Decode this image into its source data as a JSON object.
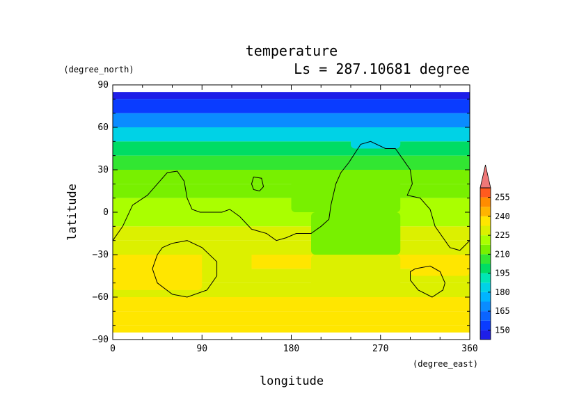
{
  "chart_data": {
    "type": "heatmap",
    "title": "temperature",
    "subtitle": "Ls = 287.10681 degree",
    "xlabel": "longitude",
    "ylabel": "latitude",
    "xunit": "(degree_east)",
    "yunit": "(degree_north)",
    "xlim": [
      0,
      360
    ],
    "ylim": [
      -90,
      90
    ],
    "xticks": [
      "0",
      "90",
      "180",
      "270",
      "360"
    ],
    "yticks": [
      "90",
      "60",
      "30",
      "0",
      "−30",
      "−60",
      "−90"
    ],
    "data_lat_range": [
      -85,
      85
    ],
    "colorbar": {
      "levels": [
        150,
        165,
        180,
        195,
        210,
        225,
        240,
        255
      ],
      "labels": [
        "150",
        "165",
        "180",
        "195",
        "210",
        "225",
        "240",
        "255"
      ],
      "bin_edges": [
        142.5,
        150,
        157.5,
        165,
        172.5,
        180,
        187.5,
        195,
        202.5,
        210,
        217.5,
        225,
        232.5,
        240,
        247.5,
        255,
        262.5
      ],
      "colors": [
        "#1e1ee8",
        "#0a3cff",
        "#0a64ff",
        "#0a8cff",
        "#00b4ff",
        "#00d2e6",
        "#00e6b4",
        "#00dc64",
        "#32e632",
        "#78f000",
        "#aaff00",
        "#dcf000",
        "#ffe600",
        "#ffb400",
        "#ff8c00",
        "#ff5a1e",
        "#ff3c3c"
      ],
      "underflow_color": "#0a0a96",
      "overflow_color": "#f07878"
    },
    "zonal_profile_note": "approximate mean temperature (K) by latitude band",
    "profile_lat": [
      85,
      75,
      65,
      55,
      45,
      35,
      25,
      15,
      5,
      -5,
      -15,
      -25,
      -35,
      -45,
      -55,
      -65,
      -75,
      -85
    ],
    "profile_temp": [
      148,
      155,
      170,
      185,
      197,
      208,
      214,
      217,
      219,
      222,
      226,
      230,
      233,
      232,
      232,
      233,
      233,
      233
    ],
    "cells": [
      {
        "lon": [
          0,
          90
        ],
        "lat": [
          -55,
          -30
        ],
        "temp": 238
      },
      {
        "lon": [
          90,
          140
        ],
        "lat": [
          -45,
          -25
        ],
        "temp": 232
      },
      {
        "lon": [
          200,
          290
        ],
        "lat": [
          -55,
          -30
        ],
        "temp": 227
      },
      {
        "lon": [
          200,
          290
        ],
        "lat": [
          -30,
          0
        ],
        "temp": 217
      },
      {
        "lon": [
          300,
          360
        ],
        "lat": [
          -45,
          -30
        ],
        "temp": 236
      },
      {
        "lon": [
          180,
          290
        ],
        "lat": [
          0,
          30
        ],
        "temp": 212
      },
      {
        "lon": [
          240,
          290
        ],
        "lat": [
          45,
          60
        ],
        "temp": 182
      }
    ],
    "topography_contours": [
      {
        "lon": [
          0,
          10,
          20,
          35,
          45,
          55,
          65,
          72,
          75,
          80,
          88,
          100,
          110,
          118,
          128,
          140,
          155,
          165,
          175,
          185,
          200,
          210,
          218,
          220,
          225,
          230,
          238,
          250,
          260,
          275,
          285,
          292,
          300,
          302,
          297,
          310,
          320,
          325,
          335,
          340,
          350,
          360
        ],
        "lat": [
          -20,
          -10,
          5,
          12,
          20,
          28,
          29,
          22,
          10,
          2,
          0,
          0,
          0,
          2,
          -3,
          -12,
          -15,
          -20,
          -18,
          -15,
          -15,
          -10,
          -5,
          5,
          20,
          28,
          35,
          48,
          50,
          45,
          45,
          38,
          30,
          20,
          12,
          10,
          2,
          -10,
          -20,
          -25,
          -27,
          -20
        ]
      },
      {
        "lon": [
          50,
          60,
          75,
          90,
          105,
          105,
          95,
          75,
          60,
          45,
          40,
          45,
          50
        ],
        "lat": [
          -25,
          -22,
          -20,
          -25,
          -35,
          -45,
          -55,
          -60,
          -58,
          -50,
          -40,
          -30,
          -25
        ]
      },
      {
        "lon": [
          305,
          320,
          330,
          335,
          333,
          322,
          308,
          300,
          300,
          305
        ],
        "lat": [
          -40,
          -38,
          -42,
          -50,
          -55,
          -60,
          -55,
          -48,
          -42,
          -40
        ]
      },
      {
        "lon": [
          142,
          150,
          152,
          148,
          142,
          140,
          142
        ],
        "lat": [
          25,
          24,
          18,
          15,
          16,
          20,
          25
        ]
      }
    ]
  }
}
